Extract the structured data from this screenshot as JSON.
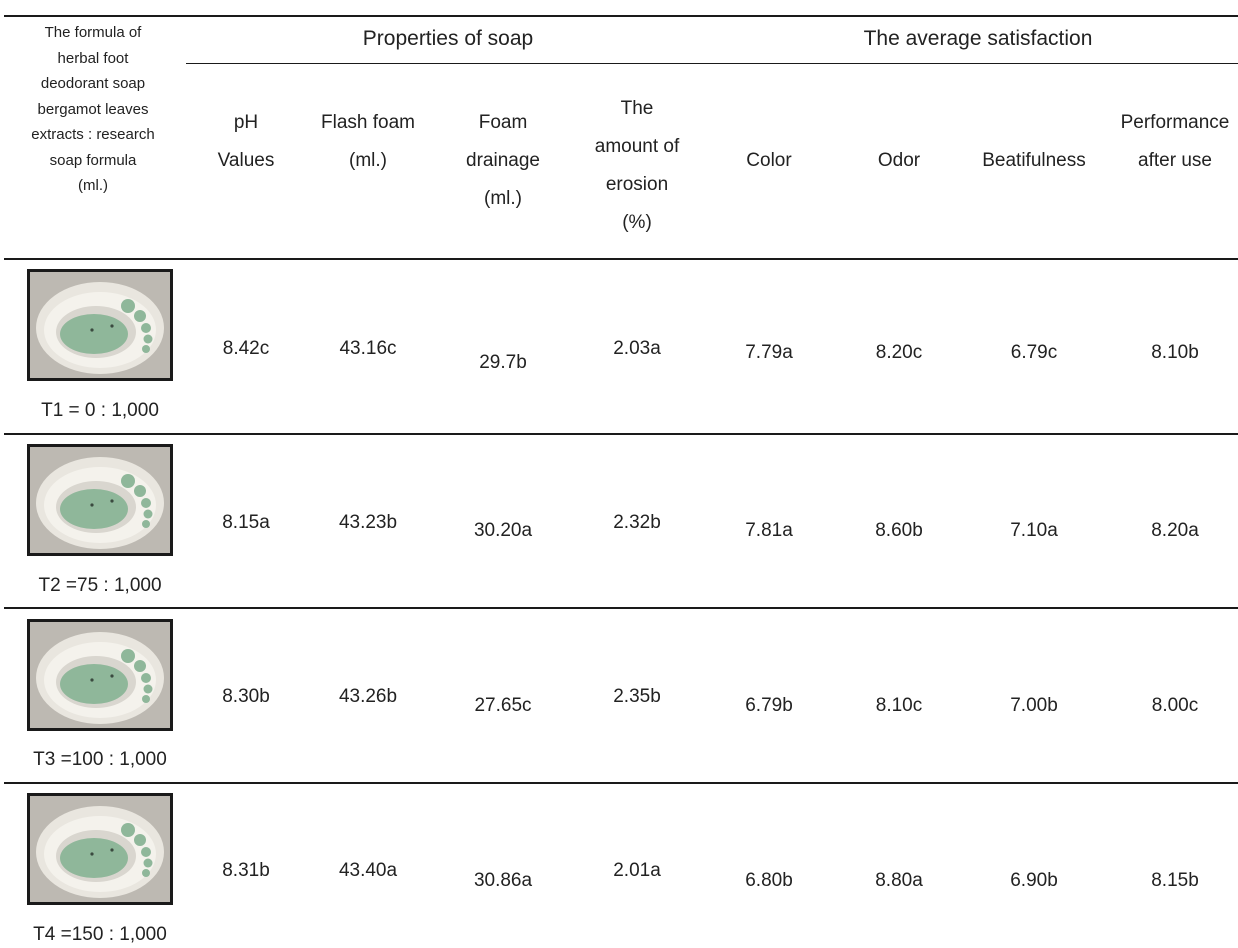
{
  "table": {
    "header": {
      "formula_col": [
        "The formula of",
        "herbal foot",
        "deodorant soap",
        "bergamot leaves",
        "extracts : research",
        "soap formula",
        "(ml.)"
      ],
      "group_properties": "Properties of soap",
      "group_satisfaction": "The average satisfaction",
      "columns": [
        {
          "lines": [
            "pH",
            "Values"
          ]
        },
        {
          "lines": [
            "Flash foam",
            "(ml.)"
          ]
        },
        {
          "lines": [
            "Foam",
            "drainage",
            "(ml.)"
          ]
        },
        {
          "lines": [
            "The",
            "amount of",
            "erosion",
            "(%)"
          ]
        },
        {
          "lines": [
            "Color"
          ]
        },
        {
          "lines": [
            "Odor"
          ]
        },
        {
          "lines": [
            "Beatifulness"
          ]
        },
        {
          "lines": [
            "Performance",
            "after use"
          ]
        }
      ]
    },
    "rows": [
      {
        "label": "T1 = 0 : 1,000",
        "image": "soap-photo",
        "values": [
          "8.42c",
          "43.16c",
          "29.7b",
          "2.03a",
          "7.79a",
          "8.20c",
          "6.79c",
          "8.10b"
        ]
      },
      {
        "label": "T2 =75 : 1,000",
        "image": "soap-photo",
        "values": [
          "8.15a",
          "43.23b",
          "30.20a",
          "2.32b",
          "7.81a",
          "8.60b",
          "7.10a",
          "8.20a"
        ]
      },
      {
        "label": "T3 =100 : 1,000",
        "image": "soap-photo",
        "values": [
          "8.30b",
          "43.26b",
          "27.65c",
          "2.35b",
          "6.79b",
          "8.10c",
          "7.00b",
          "8.00c"
        ]
      },
      {
        "label": "T4 =150 : 1,000",
        "image": "soap-photo",
        "values": [
          "8.31b",
          "43.40a",
          "30.86a",
          "2.01a",
          "6.80b",
          "8.80a",
          "6.90b",
          "8.15b"
        ]
      }
    ]
  },
  "colors": {
    "rule": "#1a1a1a",
    "text": "#222222",
    "soap_green": "#8fb79a",
    "mold_white": "#e9e6df"
  }
}
